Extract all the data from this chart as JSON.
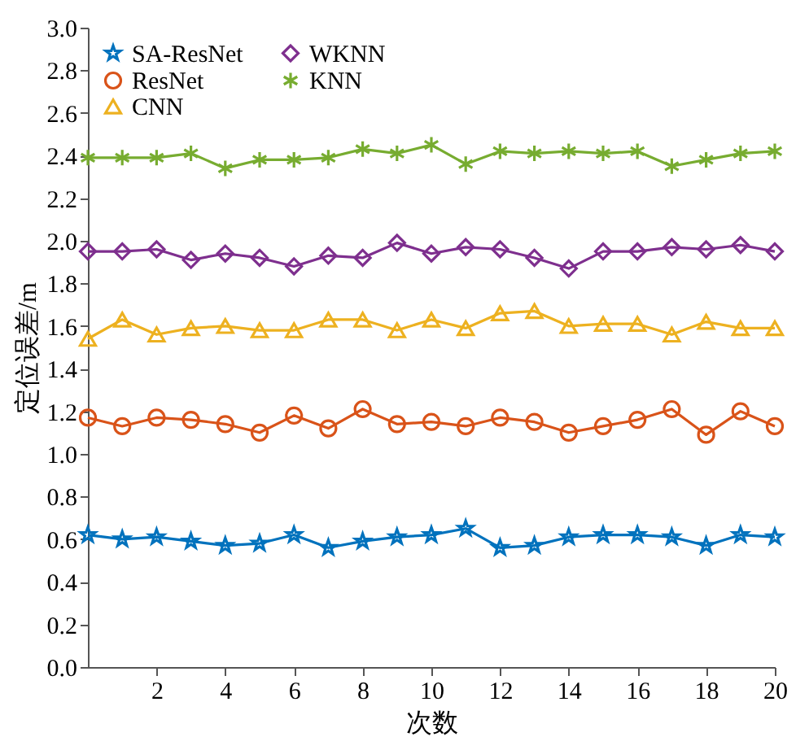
{
  "chart_data": {
    "type": "line",
    "xlabel": "次数",
    "ylabel": "定位误差/m",
    "x": [
      0,
      1,
      2,
      3,
      4,
      5,
      6,
      7,
      8,
      9,
      10,
      11,
      12,
      13,
      14,
      15,
      16,
      17,
      18,
      19,
      20
    ],
    "xlim": [
      0,
      20
    ],
    "xticks": [
      2,
      4,
      6,
      8,
      10,
      12,
      14,
      16,
      18,
      20
    ],
    "ylim": [
      0,
      3
    ],
    "yticks": [
      {
        "value": 0,
        "label": "0.0"
      },
      {
        "value": 0.2,
        "label": "0.2"
      },
      {
        "value": 0.4,
        "label": "0.4"
      },
      {
        "value": 0.6,
        "label": "0.6"
      },
      {
        "value": 0.8,
        "label": "0.8"
      },
      {
        "value": 1,
        "label": "1.0"
      },
      {
        "value": 1.2,
        "label": "1.2"
      },
      {
        "value": 1.4,
        "label": "1.4"
      },
      {
        "value": 1.6,
        "label": "1.6"
      },
      {
        "value": 1.8,
        "label": "1.8"
      },
      {
        "value": 2,
        "label": "2.0"
      },
      {
        "value": 2.2,
        "label": "2.2"
      },
      {
        "value": 2.4,
        "label": "2.4"
      },
      {
        "value": 2.6,
        "label": "2.6"
      },
      {
        "value": 2.8,
        "label": "2.8"
      },
      {
        "value": 3,
        "label": "3.0"
      }
    ],
    "grid": false,
    "legend": "top left",
    "line_style": "solid",
    "series": [
      {
        "name": "SA-ResNet",
        "color": "#0072bd",
        "marker": "star",
        "values": [
          0.62,
          0.6,
          0.61,
          0.59,
          0.57,
          0.58,
          0.62,
          0.56,
          0.59,
          0.61,
          0.62,
          0.65,
          0.56,
          0.57,
          0.61,
          0.62,
          0.62,
          0.61,
          0.57,
          0.62,
          0.61
        ]
      },
      {
        "name": "ResNet",
        "color": "#d95319",
        "marker": "circle",
        "values": [
          1.17,
          1.13,
          1.17,
          1.16,
          1.14,
          1.1,
          1.18,
          1.12,
          1.21,
          1.14,
          1.15,
          1.13,
          1.17,
          1.15,
          1.1,
          1.13,
          1.16,
          1.21,
          1.09,
          1.2,
          1.13
        ]
      },
      {
        "name": "CNN",
        "color": "#edb120",
        "marker": "triangle",
        "values": [
          1.54,
          1.63,
          1.56,
          1.59,
          1.6,
          1.58,
          1.58,
          1.63,
          1.63,
          1.58,
          1.63,
          1.59,
          1.66,
          1.67,
          1.6,
          1.61,
          1.61,
          1.56,
          1.62,
          1.59,
          1.59
        ]
      },
      {
        "name": "WKNN",
        "color": "#7e2f8e",
        "marker": "diamond",
        "values": [
          1.95,
          1.95,
          1.96,
          1.91,
          1.94,
          1.92,
          1.88,
          1.93,
          1.92,
          1.99,
          1.94,
          1.97,
          1.96,
          1.92,
          1.87,
          1.95,
          1.95,
          1.97,
          1.96,
          1.98,
          1.95
        ]
      },
      {
        "name": "KNN",
        "color": "#77ac30",
        "marker": "cross",
        "values": [
          2.39,
          2.39,
          2.39,
          2.41,
          2.34,
          2.38,
          2.38,
          2.39,
          2.43,
          2.41,
          2.45,
          2.36,
          2.42,
          2.41,
          2.42,
          2.41,
          2.42,
          2.35,
          2.38,
          2.41,
          2.42
        ]
      }
    ]
  }
}
